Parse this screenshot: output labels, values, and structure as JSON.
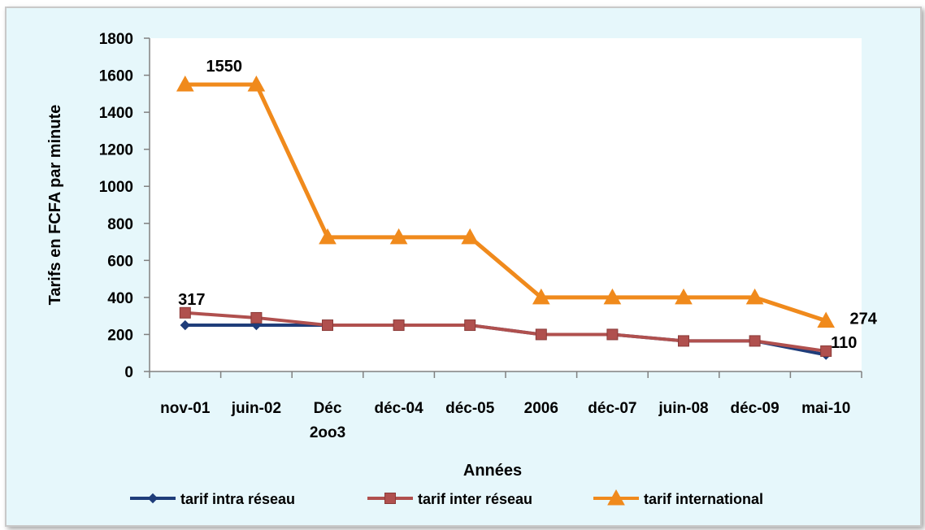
{
  "chart_data": {
    "type": "line",
    "title": "",
    "xlabel": "Années",
    "ylabel": "Tarifs en FCFA par minute",
    "ylim": [
      0,
      1800
    ],
    "yticks": [
      0,
      200,
      400,
      600,
      800,
      1000,
      1200,
      1400,
      1600,
      1800
    ],
    "categories": [
      "nov-01",
      "juin-02",
      "Déc 2oo3",
      "déc-04",
      "déc-05",
      "2006",
      "déc-07",
      "juin-08",
      "déc-09",
      "mai-10"
    ],
    "series": [
      {
        "name": "tarif intra réseau",
        "color": "#1f3d7a",
        "marker": "diamond",
        "values": [
          250,
          250,
          250,
          250,
          250,
          200,
          200,
          165,
          165,
          90
        ]
      },
      {
        "name": "tarif inter réseau",
        "color": "#b0504e",
        "marker": "square",
        "values": [
          317,
          290,
          250,
          250,
          250,
          200,
          200,
          165,
          165,
          110
        ]
      },
      {
        "name": "tarif international",
        "color": "#f08a1c",
        "marker": "triangle",
        "values": [
          1550,
          1550,
          725,
          725,
          725,
          400,
          400,
          400,
          400,
          274
        ]
      }
    ],
    "data_labels": [
      {
        "series": 2,
        "index": 0,
        "text": "1550"
      },
      {
        "series": 1,
        "index": 0,
        "text": "317"
      },
      {
        "series": 2,
        "index": 9,
        "text": "274"
      },
      {
        "series": 1,
        "index": 9,
        "text": "110"
      }
    ],
    "legend_position": "bottom",
    "grid": false
  }
}
